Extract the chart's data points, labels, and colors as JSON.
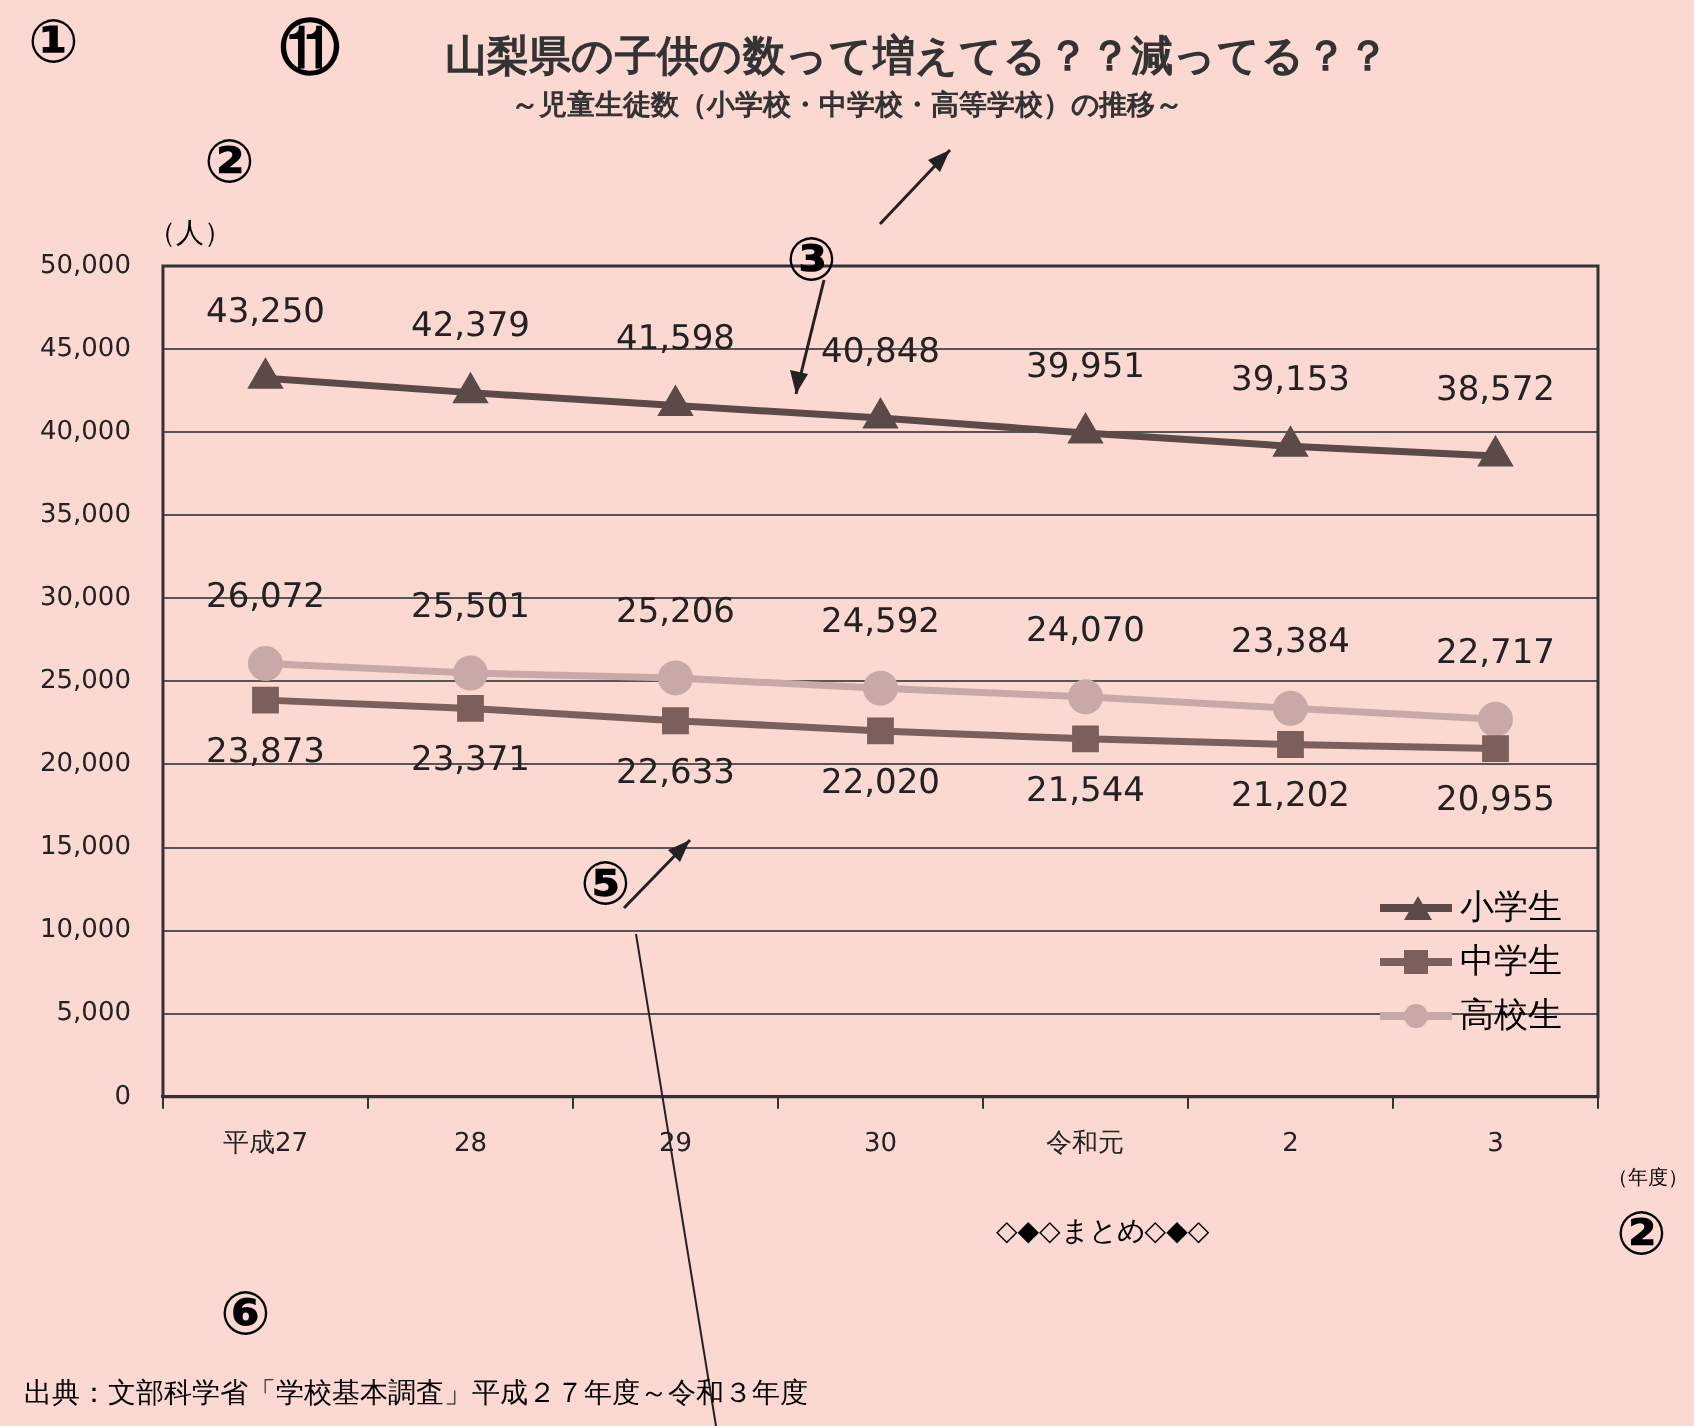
{
  "chart_data": {
    "type": "line",
    "title": "山梨県の子供の数って増えてる？？減ってる？？",
    "subtitle": "～児童生徒数（小学校・中学校・高等学校）の推移～",
    "ylabel": "（人）",
    "xlabel": "（年度）",
    "categories": [
      "平成27",
      "28",
      "29",
      "30",
      "令和元",
      "2",
      "3"
    ],
    "series": [
      {
        "name": "小学生",
        "color": "#5c4a48",
        "marker": "triangle",
        "values": [
          43250,
          42379,
          41598,
          40848,
          39951,
          39153,
          38572
        ],
        "value_labels": [
          "43,250",
          "42,379",
          "41,598",
          "40,848",
          "39,951",
          "39,153",
          "38,572"
        ]
      },
      {
        "name": "中学生",
        "color": "#7c5f5c",
        "marker": "square",
        "values": [
          23873,
          23371,
          22633,
          22020,
          21544,
          21202,
          20955
        ],
        "value_labels": [
          "23,873",
          "23,371",
          "22,633",
          "22,020",
          "21,544",
          "21,202",
          "20,955"
        ]
      },
      {
        "name": "高校生",
        "color": "#c9a9a7",
        "marker": "circle",
        "values": [
          26072,
          25501,
          25206,
          24592,
          24070,
          23384,
          22717
        ],
        "value_labels": [
          "26,072",
          "25,501",
          "25,206",
          "24,592",
          "24,070",
          "23,384",
          "22,717"
        ]
      }
    ],
    "ylim": [
      0,
      50000
    ],
    "yticks": [
      0,
      {
        "value": 5000,
        "label": "5,000"
      },
      {
        "value": 10000,
        "label": "10,000"
      },
      {
        "value": 15000,
        "label": "15,000"
      },
      {
        "value": 20000,
        "label": "20,000"
      },
      {
        "value": 25000,
        "label": "25,000"
      },
      {
        "value": 30000,
        "label": "30,000"
      },
      {
        "value": 35000,
        "label": "35,000"
      },
      {
        "value": 40000,
        "label": "40,000"
      },
      {
        "value": 45000,
        "label": "45,000"
      },
      {
        "value": 50000,
        "label": "50,000"
      }
    ],
    "grid": "y",
    "legend": "bottom right",
    "annotations": [
      "①",
      "⑪",
      "②",
      "③",
      "⑤",
      "②",
      "⑥",
      "◇◆◇まとめ◇◆◇",
      "出典：文部科学省「学校基本調査」平成２７年度～令和３年度"
    ]
  }
}
